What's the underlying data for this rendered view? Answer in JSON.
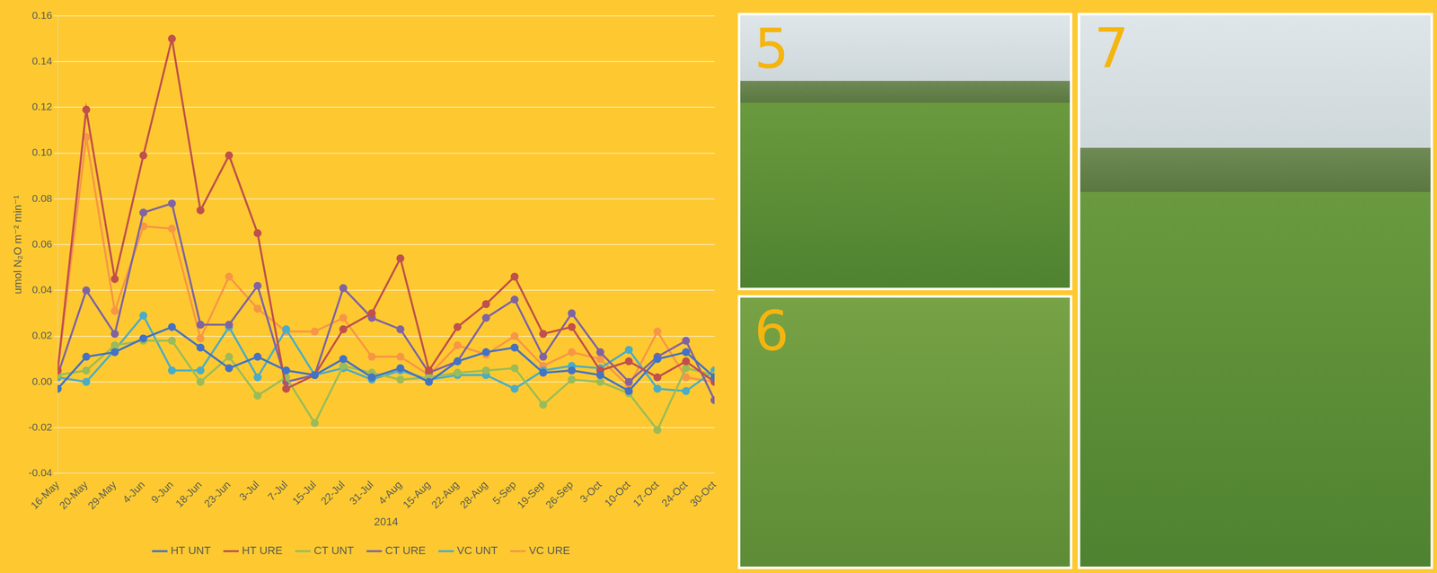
{
  "chart_data": {
    "type": "line",
    "x_label": "2014",
    "y_label": "umol N₂O m⁻² min⁻¹",
    "categories": [
      "16-May",
      "20-May",
      "29-May",
      "4-Jun",
      "9-Jun",
      "18-Jun",
      "23-Jun",
      "3-Jul",
      "7-Jul",
      "15-Jul",
      "22-Jul",
      "31-Jul",
      "4-Aug",
      "15-Aug",
      "22-Aug",
      "28-Aug",
      "5-Sep",
      "19-Sep",
      "26-Sep",
      "3-Oct",
      "10-Oct",
      "17-Oct",
      "24-Oct",
      "30-Oct"
    ],
    "series": [
      {
        "name": "HT UNT",
        "color": "#4472c4",
        "values": [
          -0.003,
          0.011,
          0.013,
          0.019,
          0.024,
          0.015,
          0.006,
          0.011,
          0.005,
          0.003,
          0.01,
          0.002,
          0.006,
          0.0,
          0.009,
          0.013,
          0.015,
          0.004,
          0.005,
          0.003,
          -0.004,
          0.01,
          0.013,
          0.002
        ]
      },
      {
        "name": "HT URE",
        "color": "#c0504d",
        "values": [
          0.005,
          0.119,
          0.045,
          0.099,
          0.15,
          0.075,
          0.099,
          0.065,
          -0.003,
          0.003,
          0.023,
          0.03,
          0.054,
          0.005,
          0.024,
          0.034,
          0.046,
          0.021,
          0.024,
          0.005,
          0.009,
          0.002,
          0.009,
          0.0
        ]
      },
      {
        "name": "CT UNT",
        "color": "#9bbb59",
        "values": [
          0.003,
          0.005,
          0.016,
          0.018,
          0.018,
          0.0,
          0.011,
          -0.006,
          0.002,
          -0.018,
          0.007,
          0.004,
          0.001,
          0.002,
          0.004,
          0.005,
          0.006,
          -0.01,
          0.001,
          0.0,
          -0.005,
          -0.021,
          0.006,
          0.003
        ]
      },
      {
        "name": "CT URE",
        "color": "#8064a2",
        "values": [
          0.003,
          0.04,
          0.021,
          0.074,
          0.078,
          0.025,
          0.025,
          0.042,
          0.0,
          0.003,
          0.041,
          0.028,
          0.023,
          0.004,
          0.009,
          0.028,
          0.036,
          0.011,
          0.03,
          0.013,
          0.0,
          0.011,
          0.018,
          -0.008
        ]
      },
      {
        "name": "VC UNT",
        "color": "#4bacc6",
        "values": [
          0.002,
          0.0,
          0.014,
          0.029,
          0.005,
          0.005,
          0.024,
          0.002,
          0.023,
          0.003,
          0.006,
          0.001,
          0.005,
          0.001,
          0.003,
          0.003,
          -0.003,
          0.005,
          0.007,
          0.006,
          0.014,
          -0.003,
          -0.004,
          0.005
        ]
      },
      {
        "name": "VC URE",
        "color": "#f79646",
        "values": [
          0.005,
          0.107,
          0.031,
          0.068,
          0.067,
          0.019,
          0.046,
          0.032,
          0.022,
          0.022,
          0.028,
          0.011,
          0.011,
          0.003,
          0.016,
          0.012,
          0.02,
          0.007,
          0.013,
          0.01,
          -0.002,
          0.022,
          0.002,
          0.0
        ]
      }
    ],
    "ylim": [
      -0.04,
      0.16
    ],
    "yticks": [
      -0.04,
      -0.02,
      {
        "value": 0,
        "label": "0.00"
      },
      0.02,
      0.04,
      0.06,
      0.08,
      {
        "value": 0.1,
        "label": "0.10"
      },
      0.12,
      0.14,
      0.16
    ],
    "grid": true,
    "legend": "bottom",
    "marker": "circle",
    "line_style": "solid"
  },
  "panels": [
    {
      "label": "5"
    },
    {
      "label": "6"
    },
    {
      "label": "7"
    }
  ]
}
